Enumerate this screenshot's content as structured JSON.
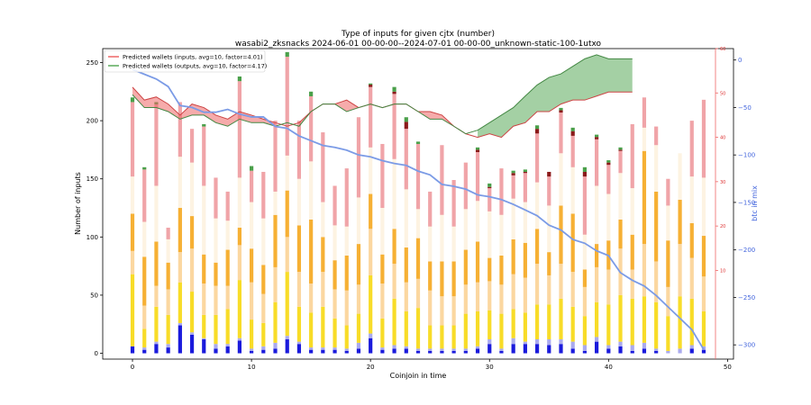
{
  "chart_data": {
    "type": "bar",
    "title": "Type of inputs for given cjtx (number)",
    "subtitle": "wasabi2_zksnacks 2024-06-01 00-00-00--2024-07-01 00-00-00_unknown-static-100-1utxo",
    "xlabel": "Coinjoin in time",
    "ylabel": "Number of inputs",
    "y2label": "btc in mix",
    "xlim": [
      -2.5,
      50.5
    ],
    "ylim": [
      -5,
      262
    ],
    "y2lim": [
      -315,
      12
    ],
    "y3lim": [
      -10,
      60
    ],
    "xticks": [
      0,
      10,
      20,
      30,
      40,
      50
    ],
    "yticks": [
      0,
      50,
      100,
      150,
      200,
      250
    ],
    "y2ticks": [
      0,
      -50,
      -100,
      -150,
      -200,
      -250,
      -300
    ],
    "y3ticks": [
      10,
      20,
      30,
      40,
      50,
      60
    ],
    "legend": {
      "position": "top-left",
      "entries": [
        "Predicted wallets (inputs, avg=10, factor=4.01)",
        "Predicted wallets (outputs, avg=10, factor=4.17)"
      ]
    },
    "colors": {
      "blue_dark": "#1a1adc",
      "blue_light": "#aaaaee",
      "yellow": "#f8dc28",
      "peach": "#fbd7a0",
      "orange": "#f6b034",
      "cream": "#fdf3e2",
      "pink": "#f0a4a8",
      "dark_red": "#8b1a1a",
      "green": "#4aa04a",
      "btc_line": "#7b9be6",
      "inputs_band": "#ee6666",
      "outputs_band": "#5aaa5a"
    },
    "stack_names": [
      "blue_dark",
      "blue_light",
      "yellow",
      "peach",
      "orange",
      "cream",
      "pink",
      "dark_red",
      "green"
    ],
    "x": [
      0,
      1,
      2,
      3,
      4,
      5,
      6,
      7,
      8,
      9,
      10,
      11,
      12,
      13,
      14,
      15,
      16,
      17,
      18,
      19,
      20,
      21,
      22,
      23,
      24,
      25,
      26,
      27,
      28,
      29,
      30,
      31,
      32,
      33,
      34,
      35,
      36,
      37,
      38,
      39,
      40,
      41,
      42,
      43,
      44,
      45,
      46,
      47,
      48
    ],
    "stacks": [
      [
        6,
        0,
        62,
        20,
        32,
        32,
        64,
        0,
        4
      ],
      [
        3,
        2,
        16,
        20,
        42,
        30,
        45,
        0,
        2
      ],
      [
        8,
        2,
        30,
        18,
        38,
        48,
        70,
        0,
        2
      ],
      [
        5,
        3,
        25,
        22,
        23,
        20,
        10,
        0,
        0
      ],
      [
        24,
        2,
        35,
        26,
        38,
        44,
        47,
        0,
        0
      ],
      [
        16,
        2,
        35,
        37,
        28,
        46,
        29,
        0,
        0
      ],
      [
        12,
        1,
        20,
        27,
        25,
        59,
        51,
        0,
        2
      ],
      [
        4,
        4,
        25,
        25,
        20,
        38,
        35,
        0,
        0
      ],
      [
        6,
        2,
        30,
        20,
        31,
        25,
        25,
        0,
        0
      ],
      [
        11,
        2,
        50,
        30,
        15,
        43,
        83,
        0,
        4
      ],
      [
        2,
        2,
        25,
        32,
        29,
        40,
        27,
        0,
        4
      ],
      [
        3,
        3,
        20,
        25,
        25,
        40,
        40,
        0,
        0
      ],
      [
        4,
        5,
        35,
        30,
        45,
        20,
        61,
        0,
        0
      ],
      [
        12,
        3,
        55,
        30,
        40,
        30,
        85,
        0,
        4
      ],
      [
        8,
        2,
        30,
        30,
        40,
        40,
        50,
        0,
        0
      ],
      [
        3,
        2,
        30,
        25,
        55,
        50,
        56,
        0,
        4
      ],
      [
        3,
        2,
        35,
        30,
        30,
        30,
        60,
        0,
        0
      ],
      [
        3,
        2,
        25,
        25,
        25,
        30,
        34,
        0,
        0
      ],
      [
        2,
        2,
        20,
        30,
        30,
        25,
        50,
        0,
        0
      ],
      [
        4,
        5,
        25,
        25,
        35,
        40,
        69,
        0,
        0
      ],
      [
        13,
        4,
        50,
        40,
        30,
        40,
        52,
        2,
        1
      ],
      [
        3,
        2,
        25,
        30,
        25,
        40,
        55,
        0,
        0
      ],
      [
        4,
        3,
        40,
        30,
        30,
        60,
        56,
        2,
        4
      ],
      [
        4,
        2,
        30,
        25,
        30,
        50,
        52,
        6,
        4
      ],
      [
        2,
        2,
        35,
        25,
        35,
        25,
        56,
        0,
        2
      ],
      [
        2,
        2,
        20,
        30,
        25,
        30,
        30,
        0,
        0
      ],
      [
        2,
        2,
        20,
        25,
        30,
        40,
        60,
        0,
        0
      ],
      [
        2,
        2,
        20,
        25,
        30,
        30,
        40,
        0,
        0
      ],
      [
        2,
        2,
        30,
        25,
        30,
        35,
        40,
        0,
        0
      ],
      [
        4,
        2,
        30,
        25,
        35,
        35,
        42,
        2,
        2
      ],
      [
        8,
        4,
        25,
        25,
        20,
        40,
        20,
        1,
        3
      ],
      [
        2,
        2,
        30,
        25,
        25,
        35,
        40,
        0,
        0
      ],
      [
        8,
        5,
        25,
        30,
        30,
        35,
        20,
        2,
        2
      ],
      [
        8,
        2,
        25,
        30,
        30,
        35,
        25,
        1,
        2
      ],
      [
        8,
        4,
        30,
        35,
        30,
        40,
        42,
        4,
        3
      ],
      [
        7,
        5,
        30,
        25,
        20,
        40,
        25,
        4,
        0
      ],
      [
        8,
        4,
        35,
        30,
        50,
        45,
        35,
        2,
        2
      ],
      [
        4,
        6,
        30,
        30,
        50,
        40,
        27,
        4,
        3
      ],
      [
        2,
        5,
        25,
        25,
        15,
        30,
        50,
        4,
        4
      ],
      [
        10,
        4,
        30,
        30,
        20,
        50,
        40,
        2,
        2
      ],
      [
        4,
        3,
        35,
        30,
        25,
        40,
        25,
        2,
        2
      ],
      [
        6,
        4,
        40,
        40,
        25,
        40,
        19,
        1,
        2
      ],
      [
        2,
        5,
        40,
        25,
        30,
        40,
        55,
        0,
        0
      ],
      [
        4,
        5,
        40,
        45,
        80,
        20,
        26,
        0,
        0
      ],
      [
        2,
        2,
        40,
        35,
        60,
        40,
        16,
        0,
        0
      ],
      [
        0,
        2,
        30,
        25,
        40,
        30,
        23,
        0,
        0
      ],
      [
        0,
        4,
        45,
        45,
        38,
        40,
        0,
        0,
        0
      ],
      [
        4,
        3,
        40,
        35,
        30,
        40,
        48,
        0,
        0
      ],
      [
        3,
        3,
        30,
        30,
        35,
        50,
        67,
        0,
        0
      ]
    ],
    "btc_in_mix": [
      -10,
      -15,
      -20,
      -28,
      -48,
      -50,
      -55,
      -55,
      -52,
      -57,
      -60,
      -60,
      -70,
      -72,
      -80,
      -85,
      -90,
      -92,
      -95,
      -100,
      -102,
      -106,
      -109,
      -111,
      -117,
      -121,
      -131,
      -133,
      -136,
      -142,
      -144,
      -147,
      -152,
      -158,
      -164,
      -174,
      -179,
      -189,
      -193,
      -201,
      -206,
      -224,
      -232,
      -238,
      -248,
      -260,
      -272,
      -284,
      -305
    ],
    "pred_inputs": [
      51.3,
      48.4,
      49.1,
      47.5,
      45.0,
      47.5,
      46.7,
      45.0,
      44.1,
      45.8,
      45.0,
      44.1,
      43.3,
      42.5,
      43.3,
      45.8,
      47.5,
      47.5,
      48.4,
      46.7,
      47.5,
      46.7,
      47.5,
      47.5,
      45.8,
      45.8,
      45.0,
      42.5,
      40.8,
      40.0,
      40.8,
      40.0,
      42.5,
      43.3,
      45.8,
      45.8,
      47.5,
      48.4,
      48.4,
      49.3,
      50.2,
      50.2,
      50.2,
      null,
      null,
      null,
      null,
      null,
      null
    ],
    "pred_outputs": [
      49.6,
      46.7,
      46.7,
      45.8,
      44.1,
      45.0,
      45.0,
      43.3,
      42.5,
      44.1,
      43.3,
      43.3,
      42.5,
      43.3,
      42.5,
      45.8,
      47.5,
      47.5,
      45.8,
      46.7,
      47.5,
      46.7,
      47.5,
      47.5,
      45.8,
      44.1,
      44.1,
      42.5,
      40.8,
      41.6,
      43.3,
      45.0,
      46.7,
      49.3,
      51.8,
      53.5,
      54.3,
      56.0,
      57.7,
      58.6,
      57.7,
      57.7,
      57.7,
      null,
      null,
      null,
      null,
      null,
      null
    ]
  }
}
